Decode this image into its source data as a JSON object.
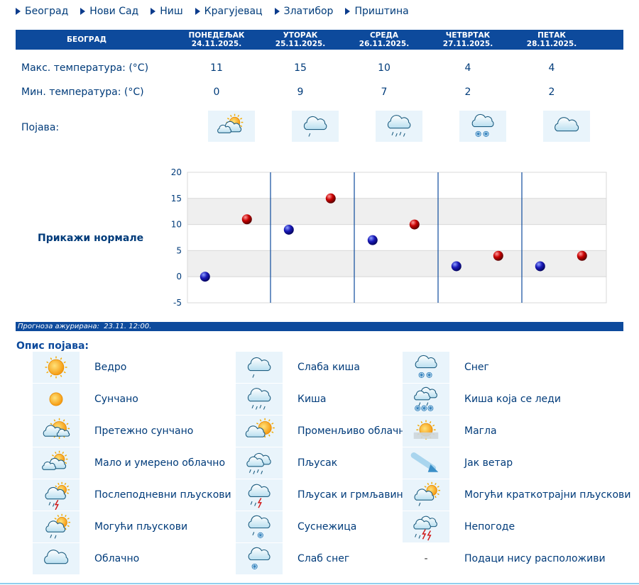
{
  "nav": {
    "cities": [
      "Београд",
      "Нови Сад",
      "Ниш",
      "Крагујевац",
      "Златибор",
      "Приштина"
    ]
  },
  "table": {
    "city": "БЕОГРАД",
    "days": [
      {
        "name": "ПОНЕДЕЉАК",
        "date": "24.11.2025.",
        "max": "11",
        "min": "0",
        "icon": "partly-cloudy-icon"
      },
      {
        "name": "УТОРАК",
        "date": "25.11.2025.",
        "max": "15",
        "min": "9",
        "icon": "light-rain-icon"
      },
      {
        "name": "СРЕДА",
        "date": "26.11.2025.",
        "max": "10",
        "min": "7",
        "icon": "rain-icon"
      },
      {
        "name": "ЧЕТВРТАК",
        "date": "27.11.2025.",
        "max": "4",
        "min": "2",
        "icon": "snow-icon"
      },
      {
        "name": "ПЕТАК",
        "date": "28.11.2025.",
        "max": "4",
        "min": "2",
        "icon": "cloudy-icon"
      }
    ],
    "max_label": "Макс. температура: (°C)",
    "min_label": "Мин. температура: (°C)",
    "phenomenon_label": "Појава:"
  },
  "show_normals_label": "Прикажи нормале",
  "chart_data": {
    "type": "scatter",
    "title": "",
    "ylim": [
      -5,
      20
    ],
    "yticks": [
      20,
      15,
      10,
      5,
      0,
      -5
    ],
    "grid": true,
    "categories": [
      "ПОНЕДЕЉАК",
      "УТОРАК",
      "СРЕДА",
      "ЧЕТВРТАК",
      "ПЕТАК"
    ],
    "series": [
      {
        "values": [
          0,
          9,
          7,
          2,
          2
        ],
        "color": "#1a1ab8"
      },
      {
        "values": [
          11,
          15,
          10,
          4,
          4
        ],
        "color": "#c80000"
      }
    ]
  },
  "updated": {
    "label": "Прогноза ажурирана:",
    "value": "23.11. 12:00."
  },
  "legend": {
    "title": "Опис појава:",
    "items": [
      {
        "icon": "clear-icon",
        "text": "Ведро"
      },
      {
        "icon": "sunny-icon",
        "text": "Сунчано"
      },
      {
        "icon": "mostly-sunny-icon",
        "text": "Претежно сунчано"
      },
      {
        "icon": "partly-cloudy-icon",
        "text": "Мало и умерено облачно"
      },
      {
        "icon": "afternoon-showers-icon",
        "text": "Послеподневни пљускови"
      },
      {
        "icon": "possible-showers-icon",
        "text": "Могући пљускови"
      },
      {
        "icon": "cloudy-icon",
        "text": "Облачно"
      },
      {
        "icon": "light-rain-icon",
        "text": "Слаба киша"
      },
      {
        "icon": "rain-icon",
        "text": "Киша"
      },
      {
        "icon": "variable-cloudy-icon",
        "text": "Променљиво облачно"
      },
      {
        "icon": "shower-icon",
        "text": "Пљусак"
      },
      {
        "icon": "thunderstorm-icon",
        "text": "Пљусак и грмљавина"
      },
      {
        "icon": "sleet-icon",
        "text": "Суснежица"
      },
      {
        "icon": "light-snow-icon",
        "text": "Слаб снег"
      },
      {
        "icon": "snow-icon",
        "text": "Снег"
      },
      {
        "icon": "freezing-rain-icon",
        "text": "Киша која се леди"
      },
      {
        "icon": "fog-icon",
        "text": "Магла"
      },
      {
        "icon": "strong-wind-icon",
        "text": "Јак ветар"
      },
      {
        "icon": "brief-showers-icon",
        "text": "Могући краткотрајни пљускови"
      },
      {
        "icon": "storm-icon",
        "text": "Непогоде"
      },
      {
        "icon": "none",
        "text": "Подаци нису расположиви",
        "dash": "-"
      }
    ]
  }
}
